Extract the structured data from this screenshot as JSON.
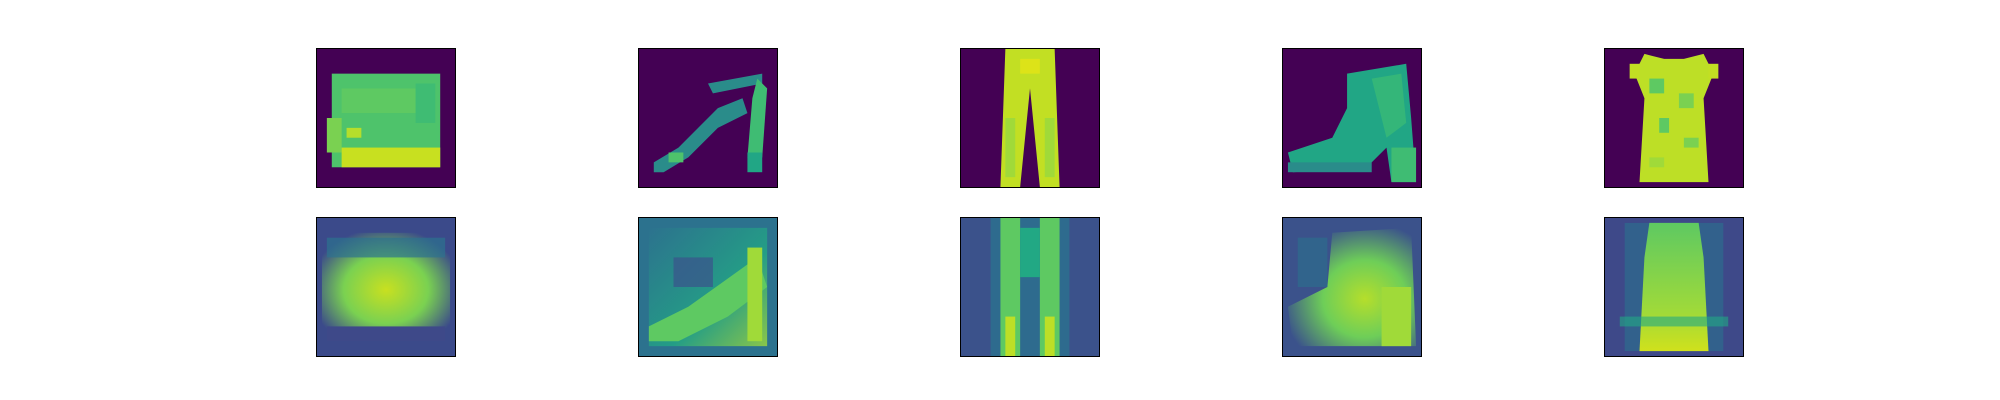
{
  "figure": {
    "rows": [
      {
        "role": "original",
        "items": [
          {
            "icon": "bag-icon",
            "background": "#440154",
            "fill": "#4ec36b",
            "accent": "#c8e020"
          },
          {
            "icon": "sandal-icon",
            "background": "#440154",
            "fill": "#2a8c8a",
            "accent": "#3fbc73"
          },
          {
            "icon": "trouser-icon",
            "background": "#440154",
            "fill": "#c2df23",
            "accent": "#dde318"
          },
          {
            "icon": "ankle-boot-icon",
            "background": "#440154",
            "fill": "#21a685",
            "accent": "#34b679"
          },
          {
            "icon": "dress-icon",
            "background": "#440154",
            "fill": "#bddf26",
            "accent": "#5ec962"
          }
        ]
      },
      {
        "role": "reconstruction",
        "items": [
          {
            "icon": "bag-icon",
            "background": "#3b4a8a",
            "fill": "#7ad151",
            "accent": "#c8e020"
          },
          {
            "icon": "sandal-icon",
            "background": "#2c728e",
            "fill": "#22a884",
            "accent": "#a0da39"
          },
          {
            "icon": "trouser-icon",
            "background": "#3b528b",
            "fill": "#5ec962",
            "accent": "#bddf26"
          },
          {
            "icon": "ankle-boot-icon",
            "background": "#3b528b",
            "fill": "#6ece58",
            "accent": "#b5de2b"
          },
          {
            "icon": "dress-icon",
            "background": "#3e4989",
            "fill": "#7ad151",
            "accent": "#d0e11c"
          }
        ]
      }
    ]
  }
}
